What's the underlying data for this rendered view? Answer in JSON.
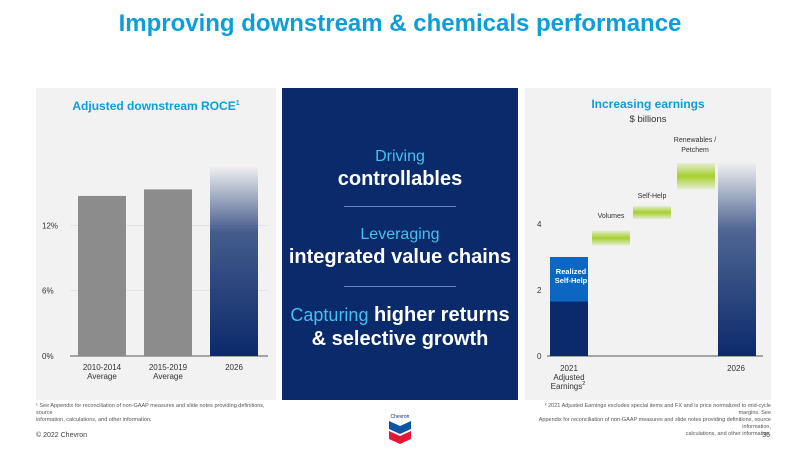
{
  "title": "Improving downstream & chemicals performance",
  "left_chart": {
    "title": "Adjusted downstream ROCE",
    "title_sup": "1",
    "y_ticks": [
      {
        "value": 0,
        "label": "0%"
      },
      {
        "value": 6,
        "label": "6%"
      },
      {
        "value": 12,
        "label": "12%"
      }
    ]
  },
  "middle": {
    "line1_light": "Driving",
    "line1_bold": "controllables",
    "line2_light": "Leveraging",
    "line2_bold": "integrated value chains",
    "line3_light": "Capturing",
    "line3_bold_a": "higher returns",
    "line3_bold_b": "& selective growth"
  },
  "right_chart": {
    "title": "Increasing earnings",
    "subtitle": "$ billions",
    "y_ticks": [
      {
        "value": 0,
        "label": "0"
      },
      {
        "value": 2,
        "label": "2"
      },
      {
        "value": 4,
        "label": "4"
      }
    ],
    "realized_label_1": "Realized",
    "realized_label_2": "Self-Help",
    "step_labels": [
      "Volumes",
      "Self-Help",
      "Renewables /",
      "Petchem"
    ],
    "x_labels": [
      "2021",
      "Adjusted",
      "Earnings",
      "2026"
    ],
    "x_label_sup": "2"
  },
  "chart_data": [
    {
      "type": "bar",
      "title": "Adjusted downstream ROCE",
      "categories": [
        "2010-2014 Average",
        "2015-2019 Average",
        "2026"
      ],
      "values": [
        14.7,
        15.3,
        17.5
      ],
      "ylim": [
        0,
        18
      ],
      "colors": [
        "#8c8c8c",
        "#8c8c8c",
        "#0b2a6b"
      ]
    },
    {
      "type": "bar",
      "title": "Increasing earnings",
      "ylabel": "$ billions",
      "categories": [
        "2021 Adjusted Earnings",
        "Volumes",
        "Self-Help",
        "Renewables / Petchem",
        "2026"
      ],
      "base": [
        0,
        3.35,
        4.15,
        5.05,
        0
      ],
      "values": [
        3.0,
        0.45,
        0.4,
        0.8,
        5.9
      ],
      "realized_self_help": [
        1.65,
        3.0
      ],
      "ylim": [
        0,
        6
      ],
      "colors": {
        "base": "#0b2a6b",
        "realized": "#0b67c2",
        "increment": "#a6cf2c"
      }
    }
  ],
  "footnotes": {
    "left_1": "¹ See Appendix for reconciliation of non-GAAP measures and slide notes providing definitions, source",
    "left_2": "information, calculations, and other information.",
    "right_1": "² 2021 Adjusted Earnings excludes special items and FX and is price normalized to mid-cycle margins. See",
    "right_2": "Appendix for reconciliation of non-GAAP measures and slide notes providing definitions, source information,",
    "right_3": "calculations, and other information."
  },
  "footer": {
    "copyright": "© 2022 Chevron",
    "logo_text": "Chevron",
    "page_number": "36"
  }
}
